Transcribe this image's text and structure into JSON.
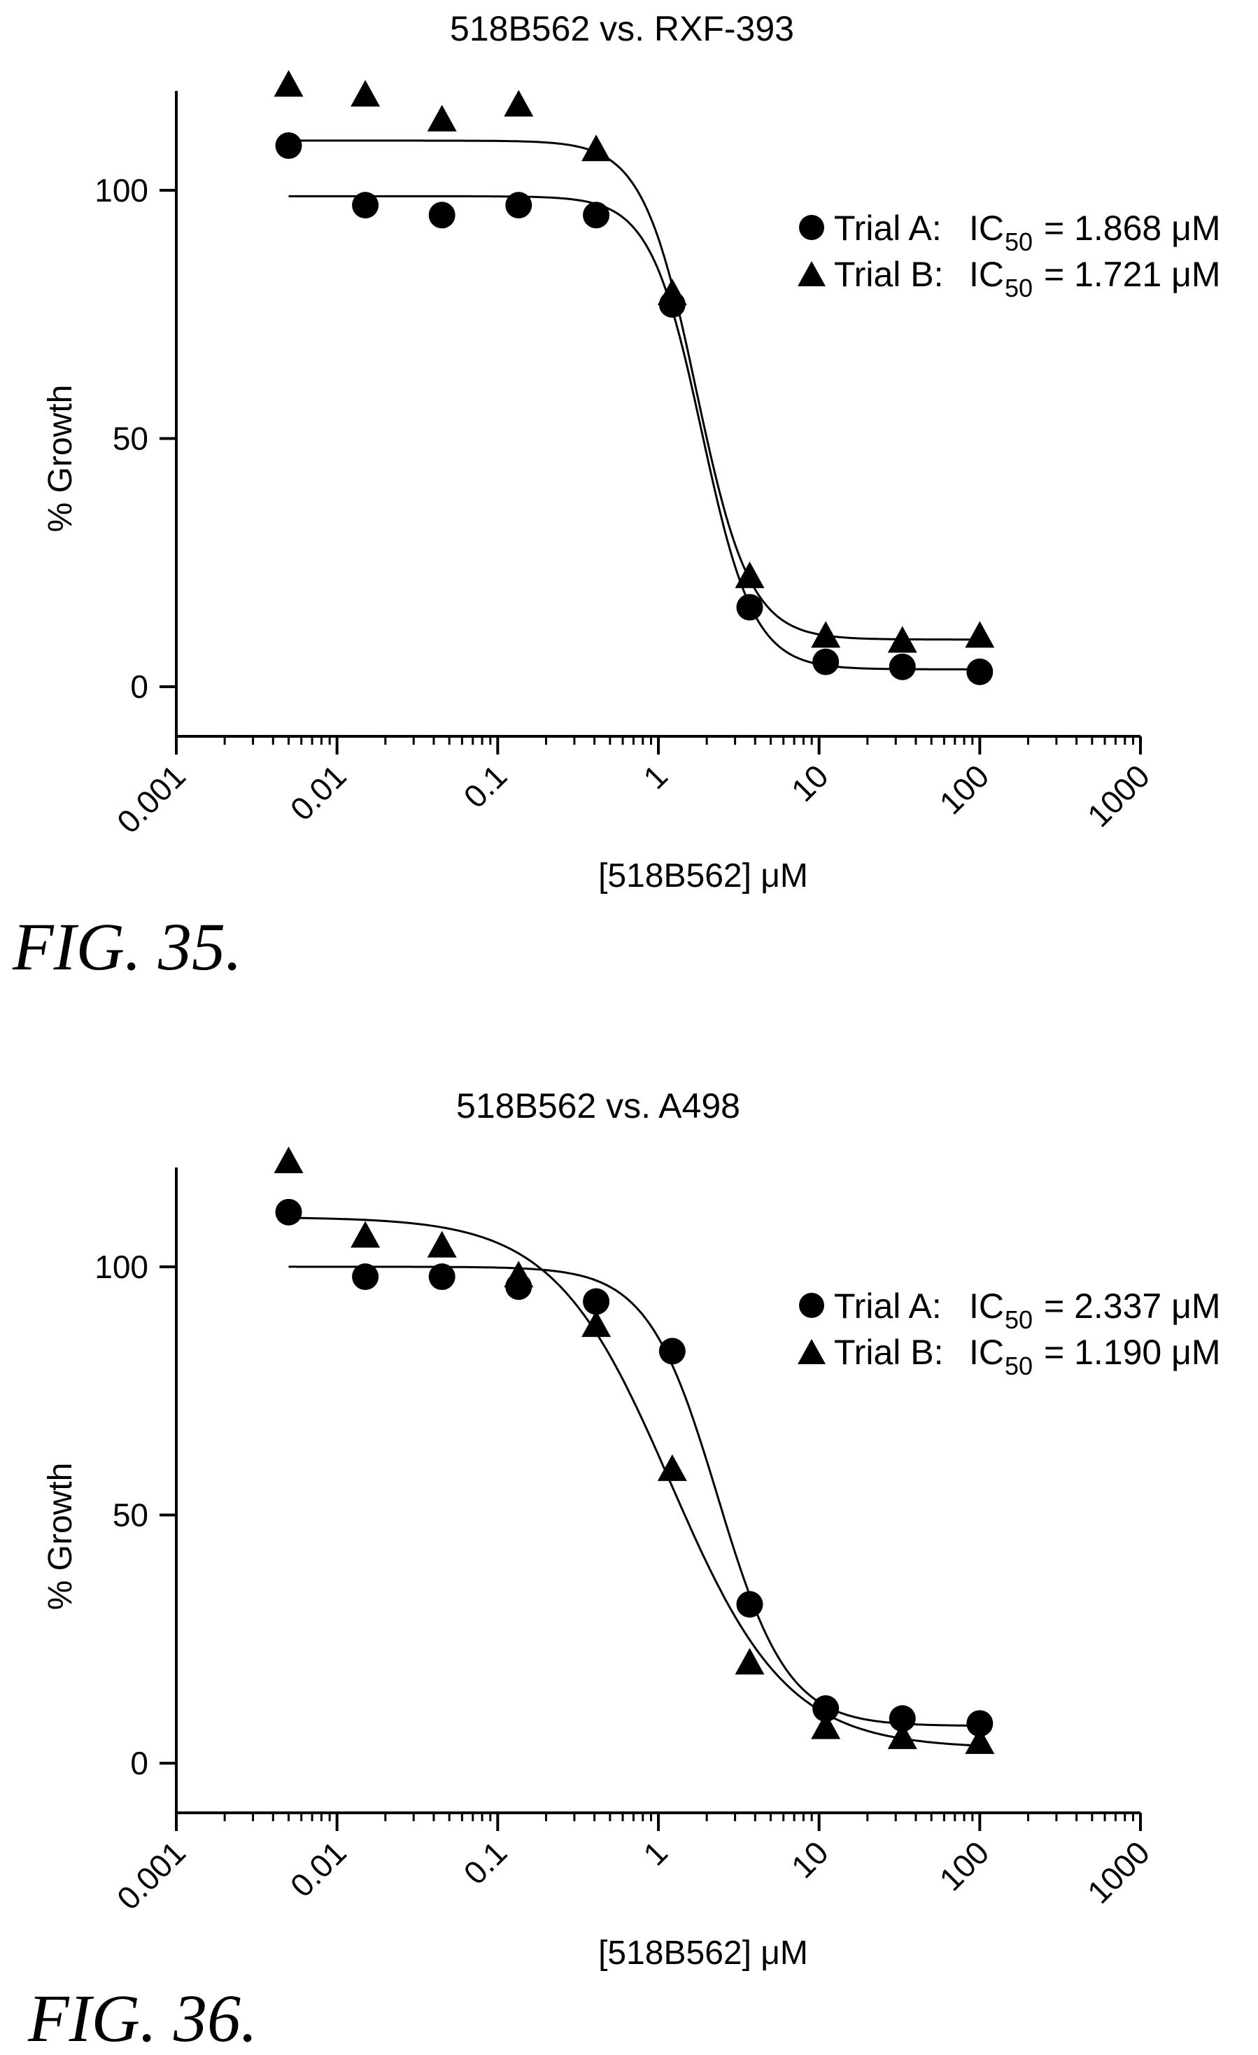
{
  "chart_data": [
    {
      "type": "scatter",
      "title": "518B562 vs. RXF-393",
      "xlabel": "[518B562] μM",
      "ylabel": "% Growth",
      "xscale": "log",
      "xlim": [
        0.001,
        1000
      ],
      "ylim": [
        -10,
        120
      ],
      "xticks": [
        "0.001",
        "0.01",
        "0.1",
        "1",
        "10",
        "100",
        "1000"
      ],
      "yticks": [
        "0",
        "50",
        "100"
      ],
      "legend_position": "right",
      "figure_label": "FIG. 35.",
      "series": [
        {
          "name": "Trial A",
          "legend_label": "Trial A:",
          "ic50_text": "IC",
          "ic50_sub": "50",
          "ic50_value": "= 1.868 μM",
          "ic50": 1.868,
          "marker": "circle",
          "fit": {
            "top": 98.8,
            "bottom": 3.5,
            "hill": 2.7
          },
          "x": [
            0.005,
            0.015,
            0.045,
            0.135,
            0.41,
            1.22,
            3.7,
            11,
            33,
            100
          ],
          "y": [
            109,
            97,
            95,
            97,
            95,
            77,
            16,
            5,
            4,
            3
          ]
        },
        {
          "name": "Trial B",
          "legend_label": "Trial B:",
          "ic50_text": "IC",
          "ic50_sub": "50",
          "ic50_value": "= 1.721 μM",
          "ic50": 1.721,
          "marker": "triangle",
          "fit": {
            "top": 110,
            "bottom": 9.5,
            "hill": 2.6
          },
          "x": [
            0.005,
            0.015,
            0.045,
            0.135,
            0.41,
            1.22,
            3.7,
            11,
            33,
            100
          ],
          "y": [
            121,
            119,
            114,
            117,
            108,
            79,
            22,
            10,
            9,
            10
          ]
        }
      ]
    },
    {
      "type": "scatter",
      "title": "518B562 vs. A498",
      "xlabel": "[518B562] μM",
      "ylabel": "% Growth",
      "xscale": "log",
      "xlim": [
        0.001,
        1000
      ],
      "ylim": [
        -10,
        120
      ],
      "xticks": [
        "0.001",
        "0.01",
        "0.1",
        "1",
        "10",
        "100",
        "1000"
      ],
      "yticks": [
        "0",
        "50",
        "100"
      ],
      "legend_position": "right",
      "figure_label": "FIG. 36.",
      "series": [
        {
          "name": "Trial A",
          "legend_label": "Trial A:",
          "ic50_text": "IC",
          "ic50_sub": "50",
          "ic50_value": "= 2.337 μM",
          "ic50": 2.337,
          "marker": "circle",
          "fit": {
            "top": 100,
            "bottom": 7.5,
            "hill": 2.0
          },
          "x": [
            0.005,
            0.015,
            0.045,
            0.135,
            0.41,
            1.22,
            3.7,
            11,
            33,
            100
          ],
          "y": [
            111,
            98,
            98,
            96,
            93,
            83,
            32,
            11,
            9,
            8
          ]
        },
        {
          "name": "Trial B",
          "legend_label": "Trial B:",
          "ic50_text": "IC",
          "ic50_sub": "50",
          "ic50_value": "= 1.190 μM",
          "ic50": 1.19,
          "marker": "triangle",
          "fit": {
            "top": 110,
            "bottom": 3,
            "hill": 1.2
          },
          "x": [
            0.005,
            0.015,
            0.045,
            0.135,
            0.41,
            1.22,
            3.7,
            11,
            33,
            100
          ],
          "y": [
            121,
            106,
            104,
            98,
            88,
            59,
            20,
            7,
            5,
            4
          ]
        }
      ]
    }
  ]
}
